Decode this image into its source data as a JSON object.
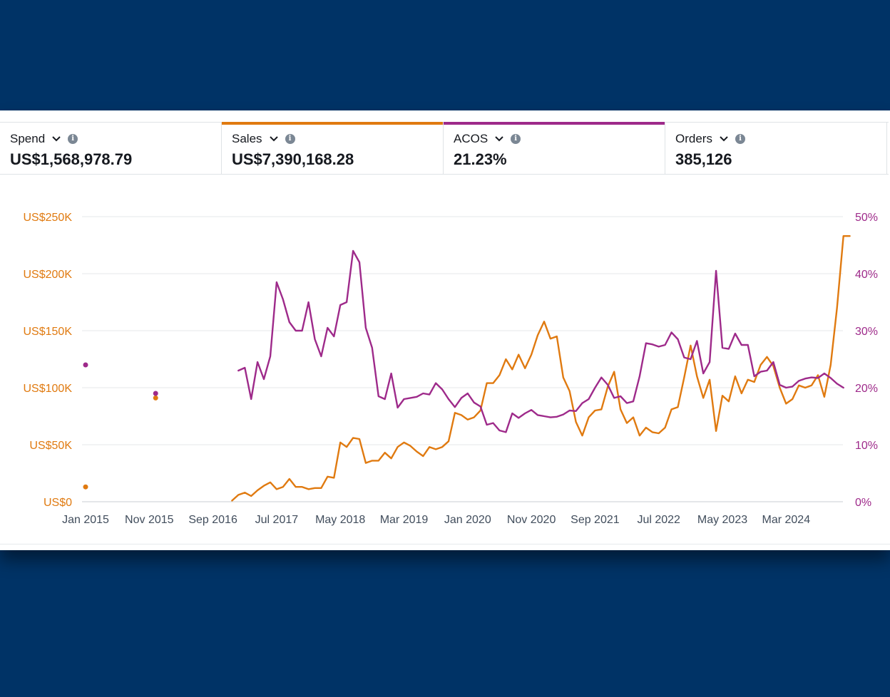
{
  "metrics": [
    {
      "label": "Spend",
      "value": "US$1,568,978.79",
      "color": ""
    },
    {
      "label": "Sales",
      "value": "US$7,390,168.28",
      "color": "#e07a10"
    },
    {
      "label": "ACOS",
      "value": "21.23%",
      "color": "#9e2a8a"
    },
    {
      "label": "Orders",
      "value": "385,126",
      "color": ""
    }
  ],
  "icons": {
    "dropdown": "chevron-down-icon",
    "info": "info-icon"
  },
  "colors": {
    "sales": "#e07a10",
    "acos": "#9e2a8a",
    "background": "#003366"
  },
  "chart_data": {
    "type": "line",
    "title": "",
    "xlabel": "",
    "ylabel": "",
    "y_left_ticks": [
      "US$0",
      "US$50K",
      "US$100K",
      "US$150K",
      "US$200K",
      "US$250K"
    ],
    "y_right_ticks": [
      "0%",
      "10%",
      "20%",
      "30%",
      "40%",
      "50%"
    ],
    "x_ticks": [
      "Jan 2015",
      "Nov 2015",
      "Sep 2016",
      "Jul 2017",
      "May 2018",
      "Mar 2019",
      "Jan 2020",
      "Nov 2020",
      "Sep 2021",
      "Jul 2022",
      "May 2023",
      "Mar 2024"
    ],
    "ylim_left": [
      0,
      250000
    ],
    "ylim_right": [
      0,
      50
    ],
    "grid": true,
    "legend": "none",
    "x_start": "2015-01",
    "x": [
      "2015-01",
      "2015-12",
      "2016-12",
      "2017-01",
      "2017-02",
      "2017-03",
      "2017-04",
      "2017-05",
      "2017-06",
      "2017-07",
      "2017-08",
      "2017-09",
      "2017-10",
      "2017-11",
      "2017-12",
      "2018-01",
      "2018-02",
      "2018-03",
      "2018-04",
      "2018-05",
      "2018-06",
      "2018-07",
      "2018-08",
      "2018-09",
      "2018-10",
      "2018-11",
      "2018-12",
      "2019-01",
      "2019-02",
      "2019-03",
      "2019-04",
      "2019-05",
      "2019-06",
      "2019-07",
      "2019-08",
      "2019-09",
      "2019-10",
      "2019-11",
      "2019-12",
      "2020-01",
      "2020-02",
      "2020-03",
      "2020-04",
      "2020-05",
      "2020-06",
      "2020-07",
      "2020-08",
      "2020-09",
      "2020-10",
      "2020-11",
      "2020-12",
      "2021-01",
      "2021-02",
      "2021-03",
      "2021-04",
      "2021-05",
      "2021-06",
      "2021-07",
      "2021-08",
      "2021-09",
      "2021-10",
      "2021-11",
      "2021-12",
      "2022-01",
      "2022-02",
      "2022-03",
      "2022-04",
      "2022-05",
      "2022-06",
      "2022-07",
      "2022-08",
      "2022-09",
      "2022-10",
      "2022-11",
      "2022-12",
      "2023-01",
      "2023-02",
      "2023-03",
      "2023-04",
      "2023-05",
      "2023-06",
      "2023-07",
      "2023-08",
      "2023-09",
      "2023-10",
      "2023-11",
      "2023-12",
      "2024-01",
      "2024-02",
      "2024-03",
      "2024-04",
      "2024-05",
      "2024-06",
      "2024-07",
      "2024-08",
      "2024-09",
      "2024-10",
      "2024-11",
      "2024-12",
      "2025-01"
    ],
    "series": [
      {
        "name": "Sales",
        "axis": "left",
        "values": [
          13000,
          91000,
          1000,
          6000,
          8000,
          5000,
          10000,
          14000,
          17000,
          11000,
          13000,
          20000,
          13000,
          13000,
          11000,
          12000,
          12000,
          22000,
          21000,
          52000,
          48000,
          56000,
          55000,
          34000,
          36000,
          36000,
          43000,
          38000,
          48000,
          52000,
          49000,
          44000,
          40000,
          48000,
          46000,
          48000,
          53000,
          78000,
          76000,
          72000,
          74000,
          80000,
          104000,
          104000,
          111000,
          125000,
          116000,
          129000,
          117000,
          129000,
          146000,
          158000,
          143000,
          145000,
          109000,
          97000,
          70000,
          58000,
          74000,
          80000,
          81000,
          101000,
          114000,
          81000,
          69000,
          74000,
          58000,
          65000,
          61000,
          60000,
          65000,
          81000,
          83000,
          109000,
          137000,
          110000,
          91000,
          107000,
          62000,
          93000,
          88000,
          110000,
          95000,
          107000,
          105000,
          120000,
          127000,
          119000,
          100000,
          86000,
          90000,
          102000,
          100000,
          102000,
          111000,
          92000,
          120000,
          170000,
          233000,
          233000
        ]
      },
      {
        "name": "ACOS",
        "axis": "right",
        "values": [
          24,
          19,
          null,
          23,
          23.5,
          18,
          24.5,
          21.5,
          25.5,
          38.5,
          35.5,
          31.5,
          30,
          30,
          35,
          28.5,
          25.5,
          30.5,
          29,
          34.5,
          35,
          44,
          42,
          30.5,
          27,
          18.5,
          18,
          22.5,
          16.5,
          18,
          18.2,
          18.4,
          19,
          18.8,
          20.8,
          19.7,
          18,
          16.6,
          18.2,
          19,
          17.4,
          16.7,
          13.5,
          13.8,
          12.5,
          12.2,
          15.5,
          14.7,
          15.5,
          16.1,
          15.2,
          15,
          14.8,
          14.9,
          15.3,
          16,
          15.9,
          17.3,
          18,
          20,
          21.8,
          20.5,
          18.2,
          18.5,
          17.3,
          17.6,
          22,
          27.8,
          27.6,
          27.2,
          27.5,
          29.7,
          28.5,
          25.3,
          25,
          28.2,
          22.5,
          24.5,
          40.5,
          27,
          26.8,
          29.5,
          27.5,
          27.5,
          22,
          22.8,
          23,
          24.5,
          20.5,
          20,
          20.2,
          21.2,
          21.6,
          21.8,
          21.7,
          22.5,
          21.7,
          20.7,
          20,
          null
        ]
      }
    ]
  }
}
